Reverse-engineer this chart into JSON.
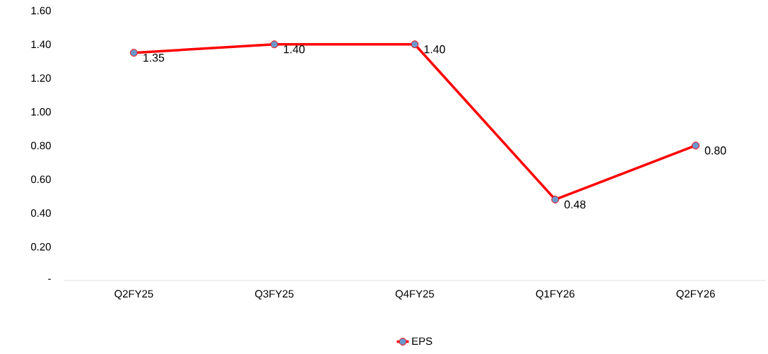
{
  "chart_data": {
    "type": "line",
    "categories": [
      "Q2FY25",
      "Q3FY25",
      "Q4FY25",
      "Q1FY26",
      "Q2FY26"
    ],
    "series": [
      {
        "name": "EPS",
        "color": "#ff0000",
        "values": [
          1.35,
          1.4,
          1.4,
          0.48,
          0.8
        ],
        "value_labels": [
          "1.35",
          "1.40",
          "1.40",
          "0.48",
          "0.80"
        ]
      }
    ],
    "ylim": [
      0,
      1.6
    ],
    "yticks": [
      {
        "value": 0,
        "label": "-"
      },
      {
        "value": 0.2,
        "label": "0.20"
      },
      {
        "value": 0.4,
        "label": "0.40"
      },
      {
        "value": 0.6,
        "label": "0.60"
      },
      {
        "value": 0.8,
        "label": "0.80"
      },
      {
        "value": 1.0,
        "label": "1.00"
      },
      {
        "value": 1.2,
        "label": "1.20"
      },
      {
        "value": 1.4,
        "label": "1.40"
      },
      {
        "value": 1.6,
        "label": "1.60"
      }
    ],
    "grid": false,
    "legend": "bottom",
    "marker": "circle",
    "line_style": "solid"
  }
}
